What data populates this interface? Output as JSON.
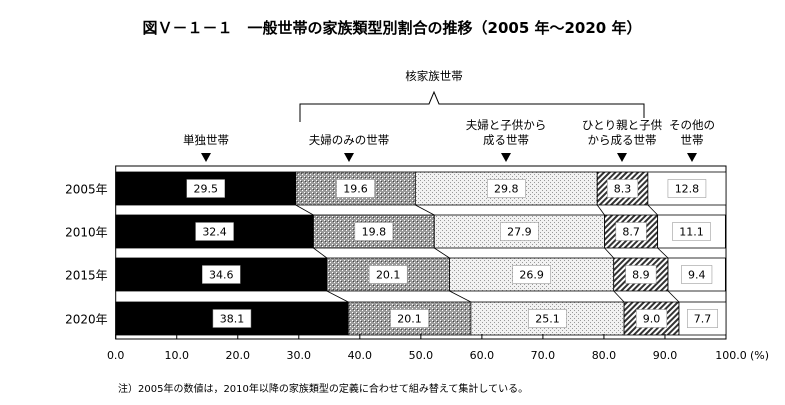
{
  "chart_data": {
    "type": "bar",
    "orientation": "horizontal-stacked-100",
    "title": "図Ｖ－１－１　一般世帯の家族類型別割合の推移（2005 年～2020 年）",
    "categories": [
      "2005年",
      "2010年",
      "2015年",
      "2020年"
    ],
    "series": [
      {
        "name": "単独世帯",
        "values": [
          29.5,
          32.4,
          34.6,
          38.1
        ],
        "labels": [
          "29.5",
          "32.4",
          "34.6",
          "38.1"
        ],
        "pattern": "solid-black"
      },
      {
        "name": "夫婦のみの世帯",
        "values": [
          19.6,
          19.8,
          20.1,
          20.1
        ],
        "labels": [
          "19.6",
          "19.8",
          "20.1",
          "20.1"
        ],
        "pattern": "dark-crosshatch"
      },
      {
        "name": "夫婦と子供から成る世帯",
        "values": [
          29.8,
          27.9,
          26.9,
          25.1
        ],
        "labels": [
          "29.8",
          "27.9",
          "26.9",
          "25.1"
        ],
        "pattern": "light-dots"
      },
      {
        "name": "ひとり親と子供から成る世帯",
        "values": [
          8.3,
          8.7,
          8.9,
          9.0
        ],
        "labels": [
          "8.3",
          "8.7",
          "8.9",
          "9.0"
        ],
        "pattern": "diagonal-hatch"
      },
      {
        "name": "その他の世帯",
        "values": [
          12.8,
          11.1,
          9.4,
          7.7
        ],
        "labels": [
          "12.8",
          "11.1",
          "9.4",
          "7.7"
        ],
        "pattern": "white"
      }
    ],
    "series_label_lines": [
      [
        "単独世帯"
      ],
      [
        "夫婦のみの世帯"
      ],
      [
        "夫婦と子供から",
        "成る世帯"
      ],
      [
        "ひとり親と子供",
        "から成る世帯"
      ],
      [
        "その他の",
        "世帯"
      ]
    ],
    "group_label": "核家族世帯",
    "xlim": [
      0,
      100
    ],
    "xticks": [
      "0.0",
      "10.0",
      "20.0",
      "30.0",
      "40.0",
      "50.0",
      "60.0",
      "70.0",
      "80.0",
      "90.0",
      "100.0"
    ],
    "xunit": "(%)",
    "grid": false,
    "legend": "above bars with arrows",
    "note": "注）2005年の数値は，2010年以降の家族類型の定義に合わせて組み替えて集計している。"
  }
}
